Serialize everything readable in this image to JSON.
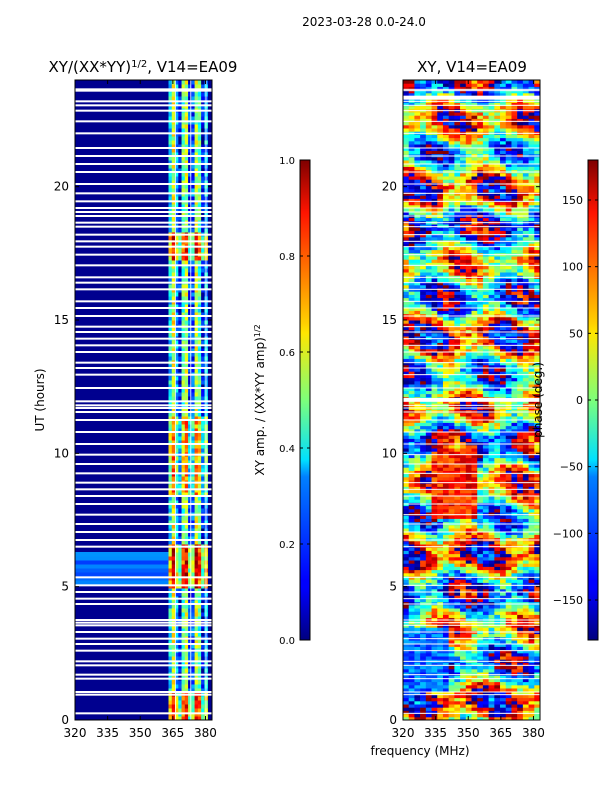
{
  "figure": {
    "suptitle": "2023-03-28 0.0-24.0",
    "xlabel": "frequency (MHz)"
  },
  "chart_data": [
    {
      "type": "heatmap",
      "name": "amplitude-ratio",
      "title": "XY/(XX*YY)^1/2, V14=EA09",
      "title_main": "XY/(XX*YY)",
      "title_sup": "1/2",
      "title_tail": ", V14=EA09",
      "xlabel": "frequency (MHz)",
      "ylabel": "UT (hours)",
      "xlim": [
        320,
        383
      ],
      "ylim": [
        0,
        24
      ],
      "xticks": [
        320,
        335,
        350,
        365,
        380
      ],
      "yticks": [
        0,
        5,
        10,
        15,
        20
      ],
      "colormap": "jet",
      "colorbar": {
        "label_main": "XY amp. / (XX*YY amp)",
        "label_sup": "1/2",
        "range": [
          0.0,
          1.0
        ],
        "ticks": [
          "0.0",
          "0.2",
          "0.4",
          "0.6",
          "0.8",
          "1.0"
        ]
      }
    },
    {
      "type": "heatmap",
      "name": "phase",
      "title": "XY, V14=EA09",
      "xlabel": "frequency (MHz)",
      "ylabel": "",
      "xlim": [
        320,
        383
      ],
      "ylim": [
        0,
        24
      ],
      "xticks": [
        320,
        335,
        350,
        365,
        380
      ],
      "yticks": [
        0,
        5,
        10,
        15,
        20
      ],
      "colormap": "jet",
      "colorbar": {
        "label_main": "phase (deg.)",
        "range": [
          -180,
          180
        ],
        "ticks": [
          "−150",
          "−100",
          "−50",
          "0",
          "50",
          "100",
          "150"
        ]
      }
    }
  ]
}
